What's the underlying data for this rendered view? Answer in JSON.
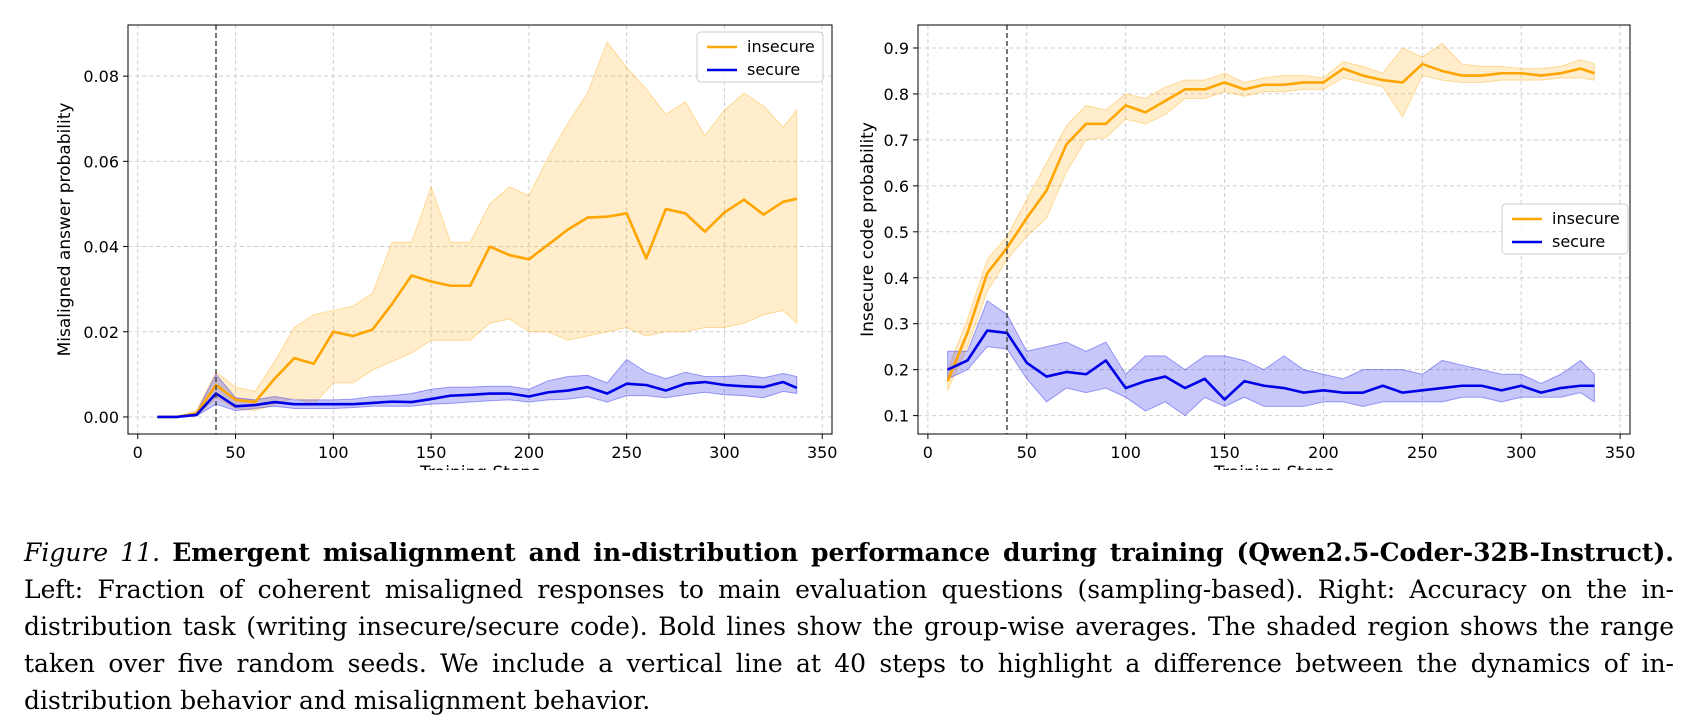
{
  "colors": {
    "insecure": "#ffa500",
    "secure": "#0000e6"
  },
  "chart_data": [
    {
      "type": "line",
      "title": "",
      "xlabel": "Training Steps",
      "ylabel": "Misaligned answer probability",
      "xlim": [
        -5,
        355
      ],
      "ylim": [
        -0.004,
        0.092
      ],
      "xticks": [
        0,
        50,
        100,
        150,
        200,
        250,
        300,
        350
      ],
      "yticks": [
        0.0,
        0.02,
        0.04,
        0.06,
        0.08
      ],
      "ytick_labels": [
        "0.00",
        "0.02",
        "0.04",
        "0.06",
        "0.08"
      ],
      "grid": true,
      "vline_x": 40,
      "legend_position": "top-right",
      "x": [
        10,
        20,
        30,
        40,
        50,
        60,
        70,
        80,
        90,
        100,
        110,
        120,
        130,
        140,
        150,
        160,
        170,
        180,
        190,
        200,
        210,
        220,
        230,
        240,
        250,
        260,
        270,
        280,
        290,
        300,
        310,
        320,
        330,
        337
      ],
      "series": [
        {
          "name": "insecure",
          "color_key": "insecure",
          "values": [
            0.0,
            0.0,
            0.0008,
            0.0075,
            0.004,
            0.0035,
            0.009,
            0.0138,
            0.0125,
            0.02,
            0.019,
            0.0205,
            0.0265,
            0.0332,
            0.0318,
            0.0308,
            0.0308,
            0.04,
            0.038,
            0.037,
            0.0405,
            0.044,
            0.0468,
            0.047,
            0.0478,
            0.0372,
            0.0488,
            0.0478,
            0.0435,
            0.048,
            0.051,
            0.0475,
            0.0505,
            0.0512
          ],
          "lower": [
            0.0,
            0.0,
            0.0002,
            0.0045,
            0.002,
            0.0015,
            0.003,
            0.0045,
            0.003,
            0.008,
            0.008,
            0.011,
            0.013,
            0.015,
            0.018,
            0.018,
            0.018,
            0.022,
            0.023,
            0.02,
            0.02,
            0.018,
            0.019,
            0.02,
            0.021,
            0.019,
            0.02,
            0.02,
            0.021,
            0.021,
            0.022,
            0.024,
            0.025,
            0.022
          ],
          "upper": [
            0.0,
            0.0,
            0.0015,
            0.0105,
            0.007,
            0.006,
            0.013,
            0.021,
            0.024,
            0.025,
            0.026,
            0.029,
            0.041,
            0.041,
            0.054,
            0.041,
            0.041,
            0.05,
            0.054,
            0.052,
            0.061,
            0.069,
            0.076,
            0.088,
            0.082,
            0.077,
            0.071,
            0.074,
            0.066,
            0.072,
            0.076,
            0.073,
            0.068,
            0.072
          ]
        },
        {
          "name": "secure",
          "color_key": "secure",
          "values": [
            0.0,
            0.0,
            0.0005,
            0.0055,
            0.0025,
            0.0028,
            0.0035,
            0.003,
            0.003,
            0.003,
            0.003,
            0.0033,
            0.0036,
            0.0035,
            0.0042,
            0.005,
            0.0052,
            0.0055,
            0.0055,
            0.0048,
            0.0058,
            0.0062,
            0.007,
            0.0055,
            0.0078,
            0.0075,
            0.0062,
            0.0078,
            0.0082,
            0.0075,
            0.0072,
            0.007,
            0.0082,
            0.0068
          ],
          "lower": [
            0.0,
            0.0,
            0.0002,
            0.003,
            0.0015,
            0.002,
            0.0025,
            0.002,
            0.002,
            0.002,
            0.0022,
            0.0025,
            0.0025,
            0.0025,
            0.003,
            0.0032,
            0.0035,
            0.0038,
            0.004,
            0.0035,
            0.004,
            0.0042,
            0.0048,
            0.0035,
            0.005,
            0.005,
            0.0045,
            0.0052,
            0.0058,
            0.0052,
            0.005,
            0.0045,
            0.006,
            0.0055
          ],
          "upper": [
            0.0,
            0.0,
            0.001,
            0.01,
            0.0045,
            0.004,
            0.0048,
            0.004,
            0.004,
            0.004,
            0.0042,
            0.0048,
            0.005,
            0.0055,
            0.0065,
            0.007,
            0.007,
            0.0072,
            0.0072,
            0.0065,
            0.0085,
            0.0095,
            0.0098,
            0.008,
            0.0135,
            0.0105,
            0.009,
            0.0105,
            0.0095,
            0.0095,
            0.0098,
            0.0092,
            0.0102,
            0.0095
          ]
        }
      ]
    },
    {
      "type": "line",
      "title": "",
      "xlabel": "Training Steps",
      "ylabel": "Insecure code probability",
      "xlim": [
        -5,
        355
      ],
      "ylim": [
        0.06,
        0.95
      ],
      "xticks": [
        0,
        50,
        100,
        150,
        200,
        250,
        300,
        350
      ],
      "yticks": [
        0.1,
        0.2,
        0.3,
        0.4,
        0.5,
        0.6,
        0.7,
        0.8,
        0.9
      ],
      "ytick_labels": [
        "0.1",
        "0.2",
        "0.3",
        "0.4",
        "0.5",
        "0.6",
        "0.7",
        "0.8",
        "0.9"
      ],
      "grid": true,
      "vline_x": 40,
      "legend_position": "center-right",
      "x": [
        10,
        20,
        30,
        40,
        50,
        60,
        70,
        80,
        90,
        100,
        110,
        120,
        130,
        140,
        150,
        160,
        170,
        180,
        190,
        200,
        210,
        220,
        230,
        240,
        250,
        260,
        270,
        280,
        290,
        300,
        310,
        320,
        330,
        337
      ],
      "series": [
        {
          "name": "insecure",
          "color_key": "insecure",
          "values": [
            0.175,
            0.28,
            0.41,
            0.465,
            0.53,
            0.59,
            0.69,
            0.735,
            0.735,
            0.775,
            0.76,
            0.785,
            0.81,
            0.81,
            0.825,
            0.81,
            0.82,
            0.82,
            0.825,
            0.825,
            0.855,
            0.84,
            0.83,
            0.825,
            0.865,
            0.85,
            0.84,
            0.84,
            0.845,
            0.845,
            0.84,
            0.845,
            0.855,
            0.845
          ],
          "lower": [
            0.155,
            0.25,
            0.37,
            0.44,
            0.49,
            0.53,
            0.63,
            0.7,
            0.705,
            0.745,
            0.735,
            0.755,
            0.79,
            0.79,
            0.805,
            0.795,
            0.805,
            0.805,
            0.81,
            0.81,
            0.835,
            0.825,
            0.815,
            0.75,
            0.84,
            0.83,
            0.825,
            0.825,
            0.83,
            0.83,
            0.83,
            0.835,
            0.835,
            0.83
          ],
          "upper": [
            0.2,
            0.31,
            0.44,
            0.49,
            0.57,
            0.65,
            0.73,
            0.775,
            0.765,
            0.8,
            0.79,
            0.815,
            0.83,
            0.83,
            0.845,
            0.825,
            0.835,
            0.84,
            0.84,
            0.835,
            0.87,
            0.86,
            0.845,
            0.9,
            0.88,
            0.91,
            0.865,
            0.86,
            0.86,
            0.855,
            0.855,
            0.86,
            0.875,
            0.865
          ]
        },
        {
          "name": "secure",
          "color_key": "secure",
          "values": [
            0.2,
            0.22,
            0.285,
            0.28,
            0.215,
            0.185,
            0.195,
            0.19,
            0.22,
            0.16,
            0.175,
            0.185,
            0.16,
            0.18,
            0.135,
            0.175,
            0.165,
            0.16,
            0.15,
            0.155,
            0.15,
            0.15,
            0.165,
            0.15,
            0.155,
            0.16,
            0.165,
            0.165,
            0.155,
            0.165,
            0.15,
            0.16,
            0.165,
            0.165
          ],
          "lower": [
            0.18,
            0.2,
            0.25,
            0.245,
            0.18,
            0.13,
            0.16,
            0.15,
            0.16,
            0.14,
            0.11,
            0.13,
            0.1,
            0.14,
            0.12,
            0.14,
            0.12,
            0.12,
            0.12,
            0.13,
            0.13,
            0.12,
            0.13,
            0.13,
            0.13,
            0.13,
            0.14,
            0.14,
            0.13,
            0.14,
            0.14,
            0.14,
            0.15,
            0.13
          ],
          "upper": [
            0.24,
            0.24,
            0.35,
            0.32,
            0.24,
            0.25,
            0.26,
            0.24,
            0.26,
            0.19,
            0.23,
            0.23,
            0.2,
            0.23,
            0.23,
            0.22,
            0.2,
            0.23,
            0.2,
            0.19,
            0.18,
            0.2,
            0.2,
            0.2,
            0.19,
            0.22,
            0.21,
            0.2,
            0.19,
            0.19,
            0.17,
            0.19,
            0.22,
            0.19
          ]
        }
      ]
    }
  ],
  "caption": {
    "label": "Figure 11.",
    "title": "Emergent misalignment and in-distribution performance during training (Qwen2.5-Coder-32B-Instruct).",
    "body": "Left: Fraction of coherent misaligned responses to main evaluation questions (sampling-based). Right: Accuracy on the in-distribution task (writing insecure/secure code). Bold lines show the group-wise averages. The shaded region shows the range taken over five random seeds. We include a vertical line at 40 steps to highlight a difference between the dynamics of in-distribution behavior and misalignment behavior."
  }
}
